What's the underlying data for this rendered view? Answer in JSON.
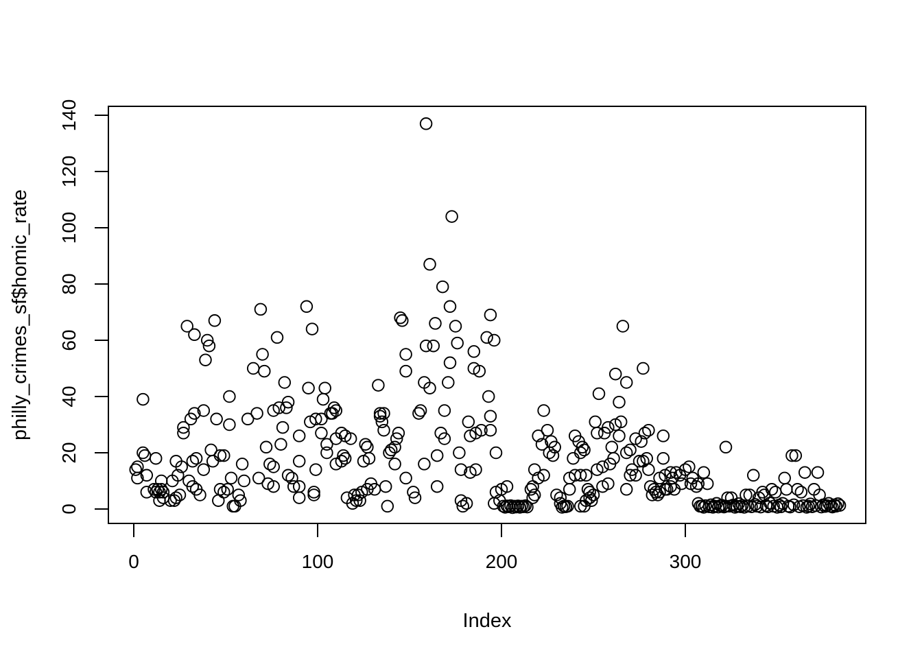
{
  "figure": {
    "background": "#ffffff",
    "foreground": "#000000"
  },
  "chart_data": {
    "type": "scatter",
    "title": "",
    "xlabel": "Index",
    "ylabel": "philly_crimes_sf$homic_rate",
    "xlim": [
      0,
      392
    ],
    "ylim": [
      0,
      145
    ],
    "xticks": [
      0,
      100,
      200,
      300
    ],
    "yticks": [
      0,
      20,
      40,
      60,
      80,
      100,
      120,
      140
    ],
    "grid": false,
    "legend": "none",
    "marker": "open-circle",
    "marker_color": "#000000",
    "points": [
      [
        1,
        14
      ],
      [
        2,
        15
      ],
      [
        2,
        11
      ],
      [
        5,
        39
      ],
      [
        5,
        20
      ],
      [
        6,
        19
      ],
      [
        7,
        12
      ],
      [
        7,
        6
      ],
      [
        11,
        7
      ],
      [
        12,
        18
      ],
      [
        12,
        6
      ],
      [
        13,
        7
      ],
      [
        14,
        6
      ],
      [
        14,
        3
      ],
      [
        15,
        10
      ],
      [
        15,
        7
      ],
      [
        16,
        6
      ],
      [
        16,
        4
      ],
      [
        20,
        3
      ],
      [
        21,
        10
      ],
      [
        22,
        3
      ],
      [
        23,
        17
      ],
      [
        23,
        4
      ],
      [
        24,
        12
      ],
      [
        25,
        5
      ],
      [
        26,
        15
      ],
      [
        27,
        29
      ],
      [
        27,
        27
      ],
      [
        29,
        65
      ],
      [
        30,
        10
      ],
      [
        31,
        32
      ],
      [
        32,
        17
      ],
      [
        32,
        8
      ],
      [
        33,
        62
      ],
      [
        33,
        34
      ],
      [
        34,
        18
      ],
      [
        34,
        7
      ],
      [
        36,
        5
      ],
      [
        38,
        35
      ],
      [
        38,
        14
      ],
      [
        39,
        53
      ],
      [
        40,
        60
      ],
      [
        41,
        58
      ],
      [
        42,
        21
      ],
      [
        43,
        17
      ],
      [
        44,
        67
      ],
      [
        45,
        32
      ],
      [
        46,
        3
      ],
      [
        47,
        19
      ],
      [
        47,
        7
      ],
      [
        49,
        19
      ],
      [
        49,
        6
      ],
      [
        51,
        7
      ],
      [
        52,
        40
      ],
      [
        52,
        30
      ],
      [
        53,
        11
      ],
      [
        54,
        1
      ],
      [
        55,
        1
      ],
      [
        57,
        5
      ],
      [
        58,
        3
      ],
      [
        59,
        16
      ],
      [
        60,
        10
      ],
      [
        62,
        32
      ],
      [
        65,
        50
      ],
      [
        67,
        34
      ],
      [
        68,
        11
      ],
      [
        69,
        71
      ],
      [
        70,
        55
      ],
      [
        71,
        49
      ],
      [
        72,
        22
      ],
      [
        73,
        9
      ],
      [
        74,
        16
      ],
      [
        76,
        35
      ],
      [
        76,
        15
      ],
      [
        76,
        8
      ],
      [
        78,
        61
      ],
      [
        79,
        36
      ],
      [
        80,
        23
      ],
      [
        81,
        29
      ],
      [
        82,
        45
      ],
      [
        83,
        36
      ],
      [
        84,
        38
      ],
      [
        84,
        12
      ],
      [
        86,
        11
      ],
      [
        87,
        8
      ],
      [
        90,
        26
      ],
      [
        90,
        17
      ],
      [
        90,
        8
      ],
      [
        90,
        4
      ],
      [
        94,
        72
      ],
      [
        95,
        43
      ],
      [
        96,
        31
      ],
      [
        97,
        64
      ],
      [
        98,
        6
      ],
      [
        98,
        5
      ],
      [
        99,
        32
      ],
      [
        99,
        14
      ],
      [
        102,
        32
      ],
      [
        102,
        27
      ],
      [
        103,
        39
      ],
      [
        104,
        43
      ],
      [
        105,
        23
      ],
      [
        105,
        20
      ],
      [
        107,
        34
      ],
      [
        108,
        34
      ],
      [
        109,
        36
      ],
      [
        110,
        35
      ],
      [
        110,
        25
      ],
      [
        110,
        16
      ],
      [
        113,
        27
      ],
      [
        113,
        17
      ],
      [
        114,
        19
      ],
      [
        115,
        26
      ],
      [
        115,
        18
      ],
      [
        116,
        4
      ],
      [
        118,
        25
      ],
      [
        119,
        2
      ],
      [
        120,
        5
      ],
      [
        121,
        3
      ],
      [
        122,
        5
      ],
      [
        123,
        3
      ],
      [
        124,
        6
      ],
      [
        125,
        17
      ],
      [
        126,
        23
      ],
      [
        127,
        22
      ],
      [
        127,
        7
      ],
      [
        128,
        18
      ],
      [
        129,
        9
      ],
      [
        131,
        7
      ],
      [
        133,
        44
      ],
      [
        134,
        34
      ],
      [
        134,
        33
      ],
      [
        135,
        31
      ],
      [
        136,
        34
      ],
      [
        136,
        28
      ],
      [
        137,
        8
      ],
      [
        138,
        1
      ],
      [
        139,
        20
      ],
      [
        140,
        21
      ],
      [
        142,
        22
      ],
      [
        142,
        16
      ],
      [
        143,
        25
      ],
      [
        144,
        27
      ],
      [
        145,
        68
      ],
      [
        146,
        67
      ],
      [
        148,
        55
      ],
      [
        148,
        49
      ],
      [
        148,
        11
      ],
      [
        152,
        6
      ],
      [
        153,
        4
      ],
      [
        155,
        34
      ],
      [
        156,
        35
      ],
      [
        158,
        45
      ],
      [
        158,
        16
      ],
      [
        159,
        58
      ],
      [
        159,
        137
      ],
      [
        161,
        87
      ],
      [
        161,
        43
      ],
      [
        163,
        58
      ],
      [
        164,
        66
      ],
      [
        165,
        19
      ],
      [
        165,
        8
      ],
      [
        167,
        27
      ],
      [
        168,
        79
      ],
      [
        169,
        35
      ],
      [
        169,
        25
      ],
      [
        171,
        45
      ],
      [
        172,
        72
      ],
      [
        172,
        52
      ],
      [
        173,
        104
      ],
      [
        175,
        65
      ],
      [
        176,
        59
      ],
      [
        177,
        20
      ],
      [
        178,
        14
      ],
      [
        178,
        3
      ],
      [
        179,
        1
      ],
      [
        181,
        2
      ],
      [
        182,
        31
      ],
      [
        183,
        26
      ],
      [
        183,
        13
      ],
      [
        185,
        56
      ],
      [
        185,
        50
      ],
      [
        186,
        27
      ],
      [
        186,
        14
      ],
      [
        188,
        49
      ],
      [
        189,
        28
      ],
      [
        192,
        61
      ],
      [
        193,
        40
      ],
      [
        194,
        69
      ],
      [
        194,
        33
      ],
      [
        194,
        28
      ],
      [
        196,
        60
      ],
      [
        196,
        2
      ],
      [
        197,
        20
      ],
      [
        197,
        6
      ],
      [
        199,
        3
      ],
      [
        200,
        7
      ],
      [
        201,
        1
      ],
      [
        202,
        0.6
      ],
      [
        203,
        8
      ],
      [
        203,
        1.1
      ],
      [
        204,
        0.8
      ],
      [
        205,
        1.2
      ],
      [
        206,
        0.5
      ],
      [
        207,
        1
      ],
      [
        208,
        0.7
      ],
      [
        209,
        1.1
      ],
      [
        210,
        0.6
      ],
      [
        211,
        1
      ],
      [
        212,
        0.8
      ],
      [
        213,
        1.2
      ],
      [
        214,
        0.7
      ],
      [
        216,
        7
      ],
      [
        217,
        8
      ],
      [
        217,
        4
      ],
      [
        218,
        14
      ],
      [
        218,
        5
      ],
      [
        220,
        26
      ],
      [
        220,
        11
      ],
      [
        222,
        23
      ],
      [
        223,
        35
      ],
      [
        223,
        12
      ],
      [
        225,
        28
      ],
      [
        226,
        20
      ],
      [
        227,
        24
      ],
      [
        228,
        19
      ],
      [
        229,
        22
      ],
      [
        230,
        5
      ],
      [
        232,
        4
      ],
      [
        232,
        2
      ],
      [
        233,
        0.6
      ],
      [
        234,
        1
      ],
      [
        235,
        0.8
      ],
      [
        236,
        1
      ],
      [
        237,
        11
      ],
      [
        237,
        7
      ],
      [
        239,
        18
      ],
      [
        240,
        26
      ],
      [
        240,
        12
      ],
      [
        242,
        24
      ],
      [
        243,
        20
      ],
      [
        243,
        12
      ],
      [
        243,
        1
      ],
      [
        244,
        22
      ],
      [
        245,
        21
      ],
      [
        245,
        1
      ],
      [
        246,
        12
      ],
      [
        246,
        3
      ],
      [
        247,
        7
      ],
      [
        248,
        6
      ],
      [
        248,
        4
      ],
      [
        249,
        3
      ],
      [
        250,
        5
      ],
      [
        251,
        31
      ],
      [
        252,
        27
      ],
      [
        252,
        14
      ],
      [
        253,
        41
      ],
      [
        255,
        15
      ],
      [
        255,
        8
      ],
      [
        256,
        27
      ],
      [
        258,
        29
      ],
      [
        258,
        9
      ],
      [
        259,
        16
      ],
      [
        260,
        22
      ],
      [
        261,
        18
      ],
      [
        262,
        48
      ],
      [
        262,
        30
      ],
      [
        264,
        38
      ],
      [
        264,
        26
      ],
      [
        265,
        31
      ],
      [
        266,
        65
      ],
      [
        268,
        45
      ],
      [
        268,
        20
      ],
      [
        268,
        7
      ],
      [
        270,
        21
      ],
      [
        270,
        12
      ],
      [
        271,
        14
      ],
      [
        273,
        25
      ],
      [
        273,
        12
      ],
      [
        275,
        17
      ],
      [
        276,
        24
      ],
      [
        277,
        50
      ],
      [
        277,
        17
      ],
      [
        278,
        27
      ],
      [
        279,
        18
      ],
      [
        280,
        28
      ],
      [
        280,
        14
      ],
      [
        281,
        8
      ],
      [
        282,
        5
      ],
      [
        283,
        7
      ],
      [
        284,
        6
      ],
      [
        285,
        5
      ],
      [
        286,
        11
      ],
      [
        286,
        6
      ],
      [
        288,
        26
      ],
      [
        288,
        18
      ],
      [
        289,
        12
      ],
      [
        289,
        7
      ],
      [
        290,
        7
      ],
      [
        292,
        13
      ],
      [
        292,
        8
      ],
      [
        293,
        11
      ],
      [
        294,
        7
      ],
      [
        295,
        13
      ],
      [
        297,
        12
      ],
      [
        298,
        9
      ],
      [
        300,
        14
      ],
      [
        302,
        15
      ],
      [
        303,
        9
      ],
      [
        304,
        11
      ],
      [
        306,
        8
      ],
      [
        307,
        9
      ],
      [
        307,
        2
      ],
      [
        308,
        1
      ],
      [
        309,
        1
      ],
      [
        310,
        13
      ],
      [
        310,
        0.6
      ],
      [
        311,
        1.2
      ],
      [
        312,
        9
      ],
      [
        313,
        0.8
      ],
      [
        314,
        1.5
      ],
      [
        315,
        0.6
      ],
      [
        316,
        1
      ],
      [
        317,
        2
      ],
      [
        318,
        0.7
      ],
      [
        319,
        1.2
      ],
      [
        320,
        1.3
      ],
      [
        321,
        0.7
      ],
      [
        322,
        22
      ],
      [
        322,
        1
      ],
      [
        323,
        4
      ],
      [
        324,
        1
      ],
      [
        325,
        4
      ],
      [
        326,
        1.4
      ],
      [
        327,
        0.6
      ],
      [
        328,
        1
      ],
      [
        329,
        1.9
      ],
      [
        330,
        0.8
      ],
      [
        331,
        1.3
      ],
      [
        332,
        0.6
      ],
      [
        333,
        5
      ],
      [
        334,
        1
      ],
      [
        335,
        5
      ],
      [
        336,
        0.8
      ],
      [
        337,
        12
      ],
      [
        338,
        1.6
      ],
      [
        339,
        1
      ],
      [
        340,
        4
      ],
      [
        341,
        0.7
      ],
      [
        342,
        6
      ],
      [
        343,
        5
      ],
      [
        344,
        1.2
      ],
      [
        345,
        0.8
      ],
      [
        346,
        2.1
      ],
      [
        347,
        7
      ],
      [
        348,
        1
      ],
      [
        349,
        6
      ],
      [
        350,
        0.6
      ],
      [
        351,
        1.4
      ],
      [
        352,
        0.8
      ],
      [
        353,
        2
      ],
      [
        354,
        11
      ],
      [
        355,
        7
      ],
      [
        356,
        1
      ],
      [
        357,
        0.7
      ],
      [
        358,
        19
      ],
      [
        359,
        1.5
      ],
      [
        360,
        19
      ],
      [
        361,
        7
      ],
      [
        362,
        0.8
      ],
      [
        363,
        6
      ],
      [
        364,
        1.2
      ],
      [
        365,
        13
      ],
      [
        366,
        0.6
      ],
      [
        367,
        1
      ],
      [
        368,
        1.8
      ],
      [
        369,
        0.8
      ],
      [
        370,
        7
      ],
      [
        371,
        1.2
      ],
      [
        372,
        13
      ],
      [
        373,
        5
      ],
      [
        374,
        0.7
      ],
      [
        375,
        1.5
      ],
      [
        376,
        0.9
      ],
      [
        377,
        1.2
      ],
      [
        378,
        2
      ],
      [
        379,
        1
      ],
      [
        380,
        0.7
      ],
      [
        381,
        1.5
      ],
      [
        382,
        1
      ],
      [
        383,
        1.9
      ],
      [
        384,
        1.3
      ]
    ]
  }
}
